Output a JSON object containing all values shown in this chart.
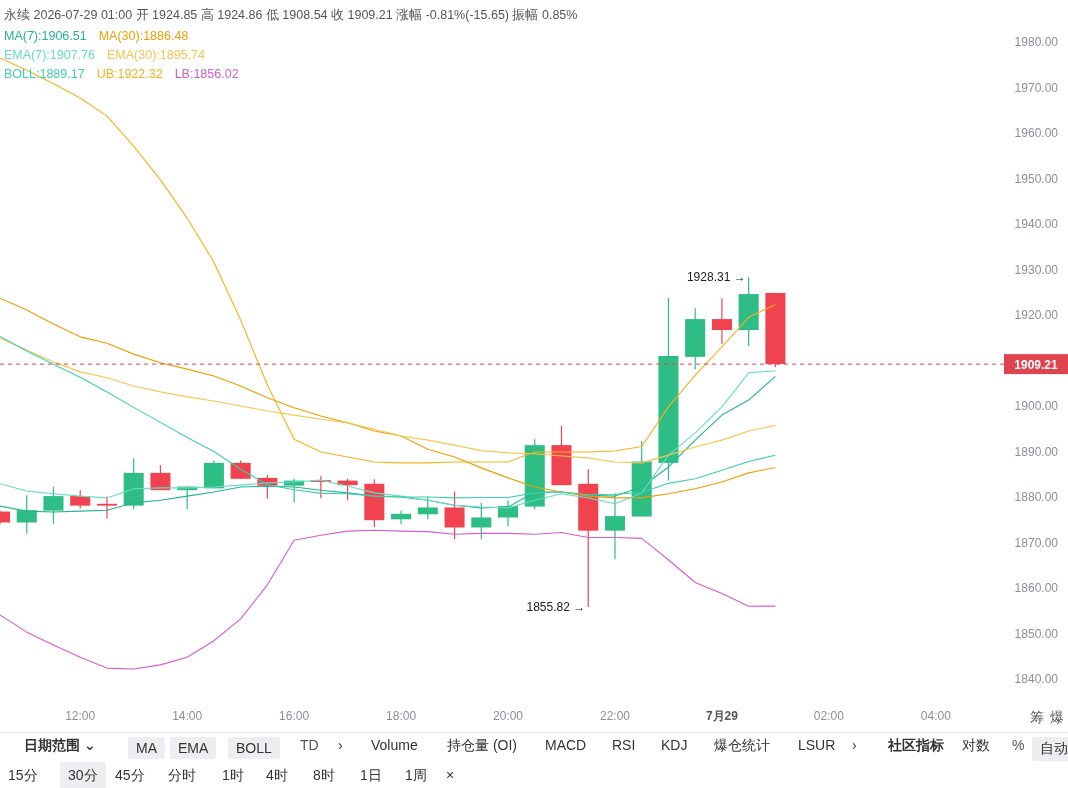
{
  "chart_data": {
    "type": "candlestick",
    "title": "永续 2026-07-29 01:00 开 1924.85 高 1924.86 低 1908.54 收 1909.21 涨幅 -0.81%(-15.65) 振幅 0.85%",
    "x": [
      "2026-07-28T10:30",
      "2026-07-28T11:00",
      "2026-07-28T11:30",
      "2026-07-28T12:00",
      "2026-07-28T12:30",
      "2026-07-28T13:00",
      "2026-07-28T13:30",
      "2026-07-28T14:00",
      "2026-07-28T14:30",
      "2026-07-28T15:00",
      "2026-07-28T15:30",
      "2026-07-28T16:00",
      "2026-07-28T16:30",
      "2026-07-28T17:00",
      "2026-07-28T17:30",
      "2026-07-28T18:00",
      "2026-07-28T18:30",
      "2026-07-28T19:00",
      "2026-07-28T19:30",
      "2026-07-28T20:00",
      "2026-07-28T20:30",
      "2026-07-28T21:00",
      "2026-07-28T21:30",
      "2026-07-28T22:00",
      "2026-07-28T22:30",
      "2026-07-28T23:00",
      "2026-07-28T23:30",
      "2026-07-29T00:00",
      "2026-07-29T00:30",
      "2026-07-29T01:00"
    ],
    "xlim": [
      "2026-07-28T10:30",
      "2026-07-29T05:12"
    ],
    "xticks": [
      {
        "value": "2026-07-28T12:00",
        "label": "12:00"
      },
      {
        "value": "2026-07-28T14:00",
        "label": "14:00"
      },
      {
        "value": "2026-07-28T16:00",
        "label": "16:00"
      },
      {
        "value": "2026-07-28T18:00",
        "label": "18:00"
      },
      {
        "value": "2026-07-28T20:00",
        "label": "20:00"
      },
      {
        "value": "2026-07-28T22:00",
        "label": "22:00"
      },
      {
        "value": "2026-07-29T00:00",
        "label": "7月29"
      },
      {
        "value": "2026-07-29T02:00",
        "label": "02:00"
      },
      {
        "value": "2026-07-29T04:00",
        "label": "04:00"
      }
    ],
    "ylim": [
      1840,
      1980
    ],
    "yticks": [
      {
        "value": 1840,
        "label": "1840.00"
      },
      {
        "value": 1850,
        "label": "1850.00"
      },
      {
        "value": 1860,
        "label": "1860.00"
      },
      {
        "value": 1870,
        "label": "1870.00"
      },
      {
        "value": 1880,
        "label": "1880.00"
      },
      {
        "value": 1890,
        "label": "1890.00"
      },
      {
        "value": 1900,
        "label": "1900.00"
      },
      {
        "value": 1920,
        "label": "1920.00"
      },
      {
        "value": 1930,
        "label": "1930.00"
      },
      {
        "value": 1940,
        "label": "1940.00"
      },
      {
        "value": 1950,
        "label": "1950.00"
      },
      {
        "value": 1960,
        "label": "1960.00"
      },
      {
        "value": 1970,
        "label": "1970.00"
      },
      {
        "value": 1980,
        "label": "1980.00"
      }
    ],
    "grid": false,
    "legend": "top left",
    "series": [
      {
        "type": "candlestick",
        "colors": [
          "#f0434f",
          "#2ebd85",
          "#2ebd85",
          "#f0434f",
          "#f0434f",
          "#2ebd85",
          "#f0434f",
          "#2ebd85",
          "#2ebd85",
          "#f0434f",
          "#f0434f",
          "#2ebd85",
          "#f0434f",
          "#f0434f",
          "#f0434f",
          "#2ebd85",
          "#2ebd85",
          "#f0434f",
          "#2ebd85",
          "#2ebd85",
          "#2ebd85",
          "#f0434f",
          "#f0434f",
          "#2ebd85",
          "#2ebd85",
          "#2ebd85",
          "#2ebd85",
          "#f0434f",
          "#2ebd85",
          "#f0434f"
        ],
        "ohlc": [
          [
            1876.8,
            1877.0,
            1874.0,
            1874.4
          ],
          [
            1874.4,
            1880.4,
            1872.0,
            1877.1
          ],
          [
            1877.0,
            1882.3,
            1874.1,
            1880.2
          ],
          [
            1880.2,
            1881.5,
            1877.5,
            1878.1
          ],
          [
            1878.5,
            1880.1,
            1875.3,
            1878.1
          ],
          [
            1878.1,
            1888.5,
            1877.3,
            1885.3
          ],
          [
            1885.3,
            1887.0,
            1881.5,
            1881.5
          ],
          [
            1881.5,
            1882.3,
            1877.3,
            1882.3
          ],
          [
            1881.9,
            1888.0,
            1881.9,
            1887.5
          ],
          [
            1887.5,
            1888.0,
            1884.0,
            1884.0
          ],
          [
            1884.2,
            1884.8,
            1879.6,
            1882.5
          ],
          [
            1882.5,
            1884.0,
            1878.8,
            1883.6
          ],
          [
            1883.7,
            1884.6,
            1879.7,
            1883.3
          ],
          [
            1883.6,
            1884.0,
            1879.3,
            1882.6
          ],
          [
            1882.9,
            1883.9,
            1873.4,
            1874.9
          ],
          [
            1875.1,
            1877.0,
            1874.0,
            1876.3
          ],
          [
            1876.2,
            1880.1,
            1875.1,
            1877.7
          ],
          [
            1877.7,
            1881.2,
            1870.7,
            1873.3
          ],
          [
            1873.3,
            1878.7,
            1870.7,
            1875.5
          ],
          [
            1875.5,
            1879.3,
            1873.5,
            1878.0
          ],
          [
            1877.9,
            1892.7,
            1877.3,
            1891.4
          ],
          [
            1891.4,
            1895.6,
            1882.6,
            1882.6
          ],
          [
            1882.9,
            1886.1,
            1855.82,
            1872.6
          ],
          [
            1872.6,
            1880.8,
            1866.3,
            1875.8
          ],
          [
            1875.7,
            1892.3,
            1875.7,
            1887.8
          ],
          [
            1887.5,
            1923.7,
            1883.6,
            1911.0
          ],
          [
            1910.8,
            1921.5,
            1908.1,
            1919.1
          ],
          [
            1919.1,
            1923.7,
            1913.6,
            1916.7
          ],
          [
            1916.7,
            1928.31,
            1913.2,
            1924.6
          ],
          [
            1924.85,
            1924.86,
            1908.54,
            1909.21
          ]
        ]
      },
      {
        "type": "line",
        "name": "MA(7):1906.51",
        "color": "#22b592",
        "values": [
          1878.0,
          1876.9,
          1876.7,
          1876.9,
          1877.1,
          1878.7,
          1879.3,
          1880.2,
          1881.1,
          1882.2,
          1882.4,
          1882.2,
          1881.5,
          1880.9,
          1880.2,
          1880.0,
          1879.3,
          1878.2,
          1877.6,
          1877.8,
          1881.1,
          1881.1,
          1880.4,
          1880.2,
          1882.2,
          1886.6,
          1892.5,
          1898.0,
          1901.3,
          1906.51
        ]
      },
      {
        "type": "line",
        "name": "MA(30):1886.48",
        "color": "#ec9f00",
        "values": [
          1923.7,
          1921.1,
          1918.0,
          1915.2,
          1913.8,
          1911.4,
          1909.5,
          1908.1,
          1906.6,
          1904.4,
          1901.8,
          1899.6,
          1897.8,
          1896.3,
          1894.5,
          1893.4,
          1890.5,
          1888.8,
          1886.4,
          1884.2,
          1882.2,
          1881.1,
          1880.2,
          1879.8,
          1879.8,
          1880.7,
          1881.8,
          1883.3,
          1885.3,
          1886.48
        ]
      },
      {
        "type": "line",
        "name": "EMA(7):1907.76",
        "color": "#68dcc4",
        "values": [
          1882.9,
          1881.3,
          1880.7,
          1880.2,
          1879.8,
          1881.8,
          1882.0,
          1882.0,
          1882.2,
          1882.6,
          1883.1,
          1883.3,
          1883.7,
          1882.4,
          1880.9,
          1880.2,
          1879.3,
          1878.2,
          1877.8,
          1877.6,
          1879.3,
          1880.7,
          1879.8,
          1878.5,
          1880.9,
          1889.2,
          1894.1,
          1899.8,
          1907.3,
          1907.76
        ]
      },
      {
        "type": "line",
        "name": "EMA(30):1895.74",
        "color": "#f7c552",
        "values": [
          1914.9,
          1912.3,
          1909.7,
          1907.5,
          1906.2,
          1904.4,
          1903.1,
          1902.0,
          1901.1,
          1900.0,
          1898.9,
          1898.0,
          1897.1,
          1896.3,
          1894.9,
          1893.4,
          1892.5,
          1891.4,
          1890.2,
          1889.7,
          1889.5,
          1889.0,
          1888.6,
          1887.7,
          1887.5,
          1889.2,
          1891.0,
          1892.5,
          1894.5,
          1895.74
        ]
      },
      {
        "type": "line",
        "name": "BOLL:1889.17",
        "color": "#3fcfae",
        "values": [
          1915.3,
          1912.1,
          1909.2,
          1906.3,
          1903.1,
          1899.7,
          1896.4,
          1893.1,
          1890.0,
          1886.1,
          1882.7,
          1881.6,
          1880.8,
          1880.7,
          1880.2,
          1880.0,
          1880.0,
          1879.8,
          1879.9,
          1879.9,
          1880.9,
          1881.1,
          1880.5,
          1880.6,
          1881.0,
          1883.0,
          1884.0,
          1885.9,
          1887.8,
          1889.17
        ]
      },
      {
        "type": "line",
        "name": "UB:1922.32",
        "color": "#f5b21b",
        "values": [
          1976.5,
          1973.8,
          1970.8,
          1967.7,
          1963.7,
          1957.1,
          1949.7,
          1941.3,
          1931.6,
          1918.9,
          1904.6,
          1892.7,
          1889.9,
          1888.8,
          1887.7,
          1887.5,
          1887.5,
          1887.7,
          1887.7,
          1887.7,
          1889.9,
          1889.9,
          1889.9,
          1890.1,
          1891.1,
          1899.8,
          1906.8,
          1913.0,
          1919.5,
          1922.32
        ]
      },
      {
        "type": "line",
        "name": "LB:1856.02",
        "color": "#d65ccb",
        "values": [
          1854.1,
          1850.3,
          1847.5,
          1844.8,
          1842.4,
          1842.2,
          1843.1,
          1844.8,
          1848.4,
          1853.2,
          1860.7,
          1870.5,
          1871.6,
          1872.5,
          1872.7,
          1872.5,
          1872.4,
          1871.8,
          1872.0,
          1872.0,
          1871.8,
          1872.2,
          1871.1,
          1871.1,
          1870.9,
          1866.2,
          1861.2,
          1858.8,
          1856.0,
          1856.02
        ]
      }
    ],
    "ref_lines": [
      {
        "axis": "y",
        "value": 1909.21,
        "label": "1909.21",
        "color": "#e0444f",
        "line_style": "dashed"
      }
    ],
    "annotations": [
      {
        "text": "1928.31 →",
        "x": "2026-07-29T00:30",
        "y": 1928.31
      },
      {
        "text": "1855.82 →",
        "x": "2026-07-28T21:30",
        "y": 1855.82
      },
      "筹",
      "爆",
      "日期范围 ⌄",
      "MA",
      "EMA",
      "BOLL",
      "TD",
      "›",
      "Volume",
      "持仓量 (OI)",
      "MACD",
      "RSI",
      "KDJ",
      "爆仓统计",
      "LSUR",
      "›",
      "社区指标",
      "对数",
      "%",
      "自动",
      "15分",
      "30分",
      "45分",
      "分时",
      "1时",
      "4时",
      "8时",
      "1日",
      "1周",
      "×"
    ]
  }
}
